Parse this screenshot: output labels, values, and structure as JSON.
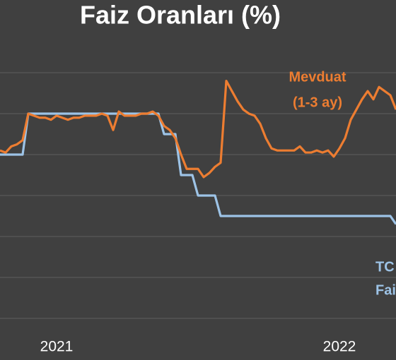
{
  "chart_data": {
    "type": "line",
    "title": "Faiz Oranları (%)",
    "categories": [
      null,
      null,
      null,
      null,
      null,
      null,
      null,
      null,
      null,
      null,
      "2021",
      null,
      null,
      null,
      null,
      null,
      null,
      null,
      null,
      null,
      null,
      null,
      null,
      null,
      null,
      null,
      null,
      null,
      null,
      null,
      null,
      null,
      null,
      null,
      null,
      null,
      null,
      null,
      null,
      null,
      null,
      null,
      null,
      null,
      null,
      null,
      null,
      null,
      null,
      null,
      null,
      null,
      null,
      null,
      null,
      null,
      null,
      null,
      null,
      null,
      "2022",
      null,
      null,
      null,
      null,
      null,
      null,
      null,
      null,
      null,
      null
    ],
    "series": [
      {
        "name_lines": [
          "Mevduat",
          "(1-3 ay)"
        ],
        "color": "#ed7d31",
        "values": [
          17.2,
          17.1,
          17.4,
          17.5,
          17.7,
          19.0,
          18.9,
          18.8,
          18.8,
          18.7,
          18.9,
          18.8,
          18.7,
          18.8,
          18.8,
          18.9,
          18.9,
          18.9,
          19.0,
          18.9,
          18.2,
          19.1,
          18.9,
          18.9,
          18.9,
          19.0,
          19.0,
          19.1,
          18.9,
          18.4,
          18.2,
          17.8,
          17.0,
          16.3,
          16.3,
          16.3,
          15.9,
          16.1,
          16.4,
          16.6,
          20.6,
          20.1,
          19.6,
          19.2,
          19.0,
          18.9,
          18.5,
          17.8,
          17.3,
          17.2,
          17.2,
          17.2,
          17.2,
          17.4,
          17.1,
          17.1,
          17.2,
          17.1,
          17.2,
          16.9,
          17.3,
          17.8,
          18.7,
          19.2,
          19.7,
          20.1,
          19.7,
          20.3,
          20.1,
          19.9,
          19.2
        ]
      },
      {
        "name_lines": [
          "TC",
          "Fai"
        ],
        "color": "#9dc3e6",
        "values": [
          17,
          17,
          17,
          17,
          17,
          19,
          19,
          19,
          19,
          19,
          19,
          19,
          19,
          19,
          19,
          19,
          19,
          19,
          19,
          19,
          19,
          19,
          19,
          19,
          19,
          19,
          19,
          19,
          19,
          18,
          18,
          18,
          16,
          16,
          16,
          15,
          15,
          15,
          15,
          14,
          14,
          14,
          14,
          14,
          14,
          14,
          14,
          14,
          14,
          14,
          14,
          14,
          14,
          14,
          14,
          14,
          14,
          14,
          14,
          14,
          14,
          14,
          14,
          14,
          14,
          14,
          14,
          14,
          14,
          14,
          13.6
        ]
      }
    ],
    "ylim": [
      7,
      24.55
    ],
    "yticks": [
      9,
      11,
      13,
      15,
      17,
      19,
      21
    ],
    "grid": true
  }
}
